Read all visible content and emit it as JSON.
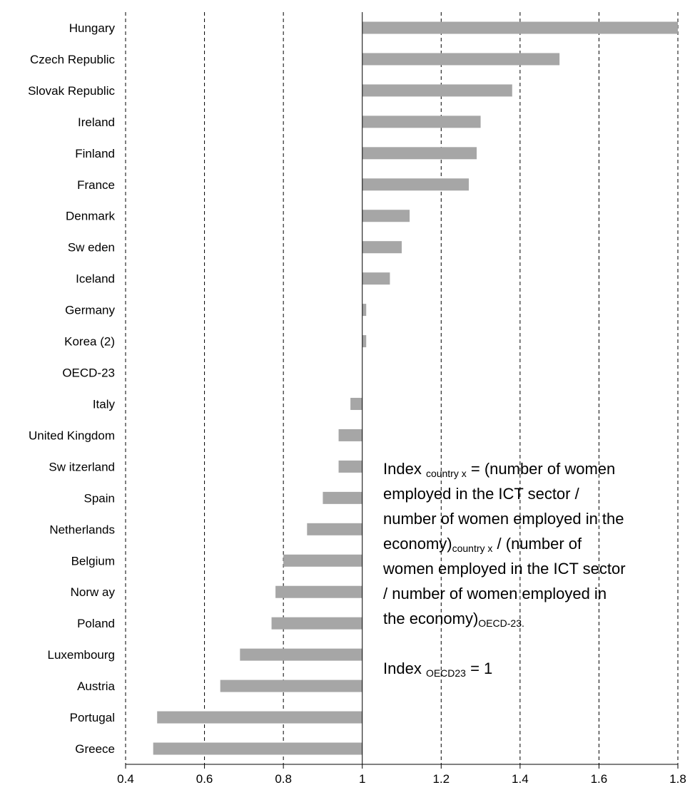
{
  "chart_data": {
    "type": "bar",
    "orientation": "horizontal",
    "baseline": 1,
    "categories": [
      "Hungary",
      "Czech Republic",
      "Slovak Republic",
      "Ireland",
      "Finland",
      "France",
      "Denmark",
      "Sw eden",
      "Iceland",
      "Germany",
      "Korea (2)",
      "OECD-23",
      "Italy",
      "United Kingdom",
      "Sw itzerland",
      "Spain",
      "Netherlands",
      "Belgium",
      "Norw ay",
      "Poland",
      "Luxembourg",
      "Austria",
      "Portugal",
      "Greece"
    ],
    "values": [
      1.8,
      1.5,
      1.38,
      1.3,
      1.29,
      1.27,
      1.12,
      1.1,
      1.07,
      1.01,
      1.01,
      1.0,
      0.97,
      0.94,
      0.94,
      0.9,
      0.86,
      0.8,
      0.78,
      0.77,
      0.69,
      0.64,
      0.48,
      0.47
    ],
    "xlim": [
      0.4,
      1.8
    ],
    "xticks": [
      "0.4",
      "0.6",
      "0.8",
      "1",
      "1.2",
      "1.4",
      "1.6",
      "1.8"
    ],
    "grid": "vertical-dashed",
    "bar_color": "#a6a6a6",
    "xlabel": "",
    "ylabel": "",
    "title": ""
  },
  "annotation": {
    "line1_pre": "Index ",
    "line1_sub": "country x",
    "line1_post": " = (number of women",
    "line2": "employed in the ICT sector /",
    "line3": "number of women employed in the",
    "line4_pre": "economy)",
    "line4_sub": "country x",
    "line4_post": " / (number of",
    "line5": "women employed in the ICT sector",
    "line6": "/ number of women employed in",
    "line7_pre": "the economy)",
    "line7_sub": "OECD-23.",
    "line8_pre": "Index ",
    "line8_sub": "OECD23",
    "line8_post": " = 1"
  }
}
